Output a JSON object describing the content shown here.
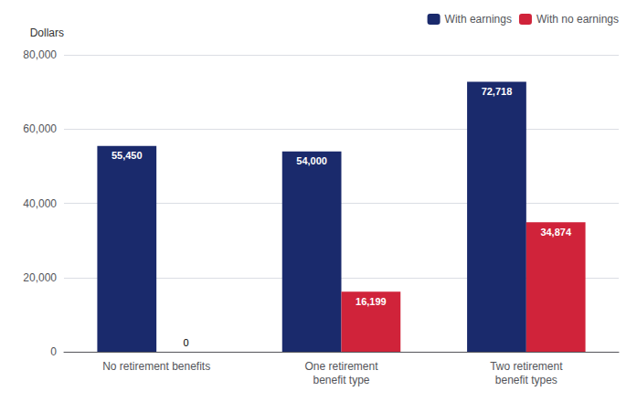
{
  "chart_data": {
    "type": "bar",
    "ylabel": "Dollars",
    "categories": [
      "No retirement benefits",
      "One retirement\nbenefit type",
      "Two retirement\nbenefit types"
    ],
    "series": [
      {
        "name": "With earnings",
        "color": "#1a2a6c",
        "values": [
          55450,
          54000,
          72718
        ],
        "value_labels": [
          "55,450",
          "54,000",
          "72,718"
        ]
      },
      {
        "name": "With no earnings",
        "color": "#d0233a",
        "values": [
          0,
          16199,
          34874
        ],
        "value_labels": [
          "0",
          "16,199",
          "34,874"
        ]
      }
    ],
    "ylim": [
      0,
      80000
    ],
    "yticks": [
      0,
      {
        "value": 20000,
        "label": "20,000"
      },
      {
        "value": 40000,
        "label": "40,000"
      },
      {
        "value": 60000,
        "label": "60,000"
      },
      {
        "value": 80000,
        "label": "80,000"
      }
    ],
    "grid": true,
    "data_labels": true,
    "legend": "upper right"
  }
}
